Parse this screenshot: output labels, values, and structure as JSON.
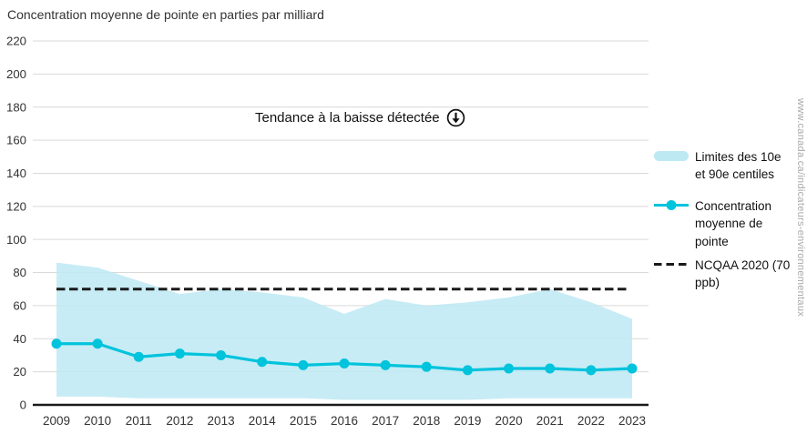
{
  "page": {
    "title": "Concentration moyenne de pointe en parties par milliard",
    "watermark": "www.canada.ca/indicateurs-environnementaux"
  },
  "annotation": {
    "text": "Tendance à la baisse détectée",
    "icon": "circled-down-arrow"
  },
  "legend": {
    "items": [
      {
        "label": "Limites des 10e et 90e centiles",
        "swatch": "band"
      },
      {
        "label": "Concentration moyenne de pointe",
        "swatch": "line-marker"
      },
      {
        "label": "NCQAA 2020 (70 ppb)",
        "swatch": "dashed-line"
      }
    ]
  },
  "colors": {
    "line": "#00c3dc",
    "band": "#bde9f3",
    "reference": "#1a1a1a",
    "grid": "#d9d9d9",
    "axis": "#1a1a1a",
    "text": "#333333",
    "watermark": "#a9a9a9"
  },
  "chart_data": {
    "type": "line",
    "title": "Concentration moyenne de pointe en parties par milliard",
    "unit": "ppb",
    "x": [
      2009,
      2010,
      2011,
      2012,
      2013,
      2014,
      2015,
      2016,
      2017,
      2018,
      2019,
      2020,
      2021,
      2022,
      2023
    ],
    "ylim": [
      0,
      220
    ],
    "ytick_step": 20,
    "grid": true,
    "legend_position": "right",
    "annotation": "Tendance à la baisse détectée",
    "series": [
      {
        "name": "Concentration moyenne de pointe",
        "type": "line",
        "color": "#00c3dc",
        "values": [
          37,
          37,
          29,
          31,
          30,
          26,
          24,
          25,
          24,
          23,
          21,
          22,
          22,
          21,
          22
        ]
      },
      {
        "name": "Limites des 10e et 90e centiles",
        "type": "band",
        "color": "#bde9f3",
        "upper": [
          86,
          83,
          75,
          67,
          70,
          68,
          65,
          55,
          64,
          60,
          62,
          65,
          70,
          62,
          52
        ],
        "lower": [
          5,
          5,
          4,
          4,
          4,
          4,
          4,
          3,
          3,
          3,
          3,
          4,
          4,
          4,
          4
        ]
      },
      {
        "name": "NCQAA 2020 (70 ppb)",
        "type": "reference-line",
        "style": "dashed",
        "color": "#1a1a1a",
        "value": 70
      }
    ]
  }
}
